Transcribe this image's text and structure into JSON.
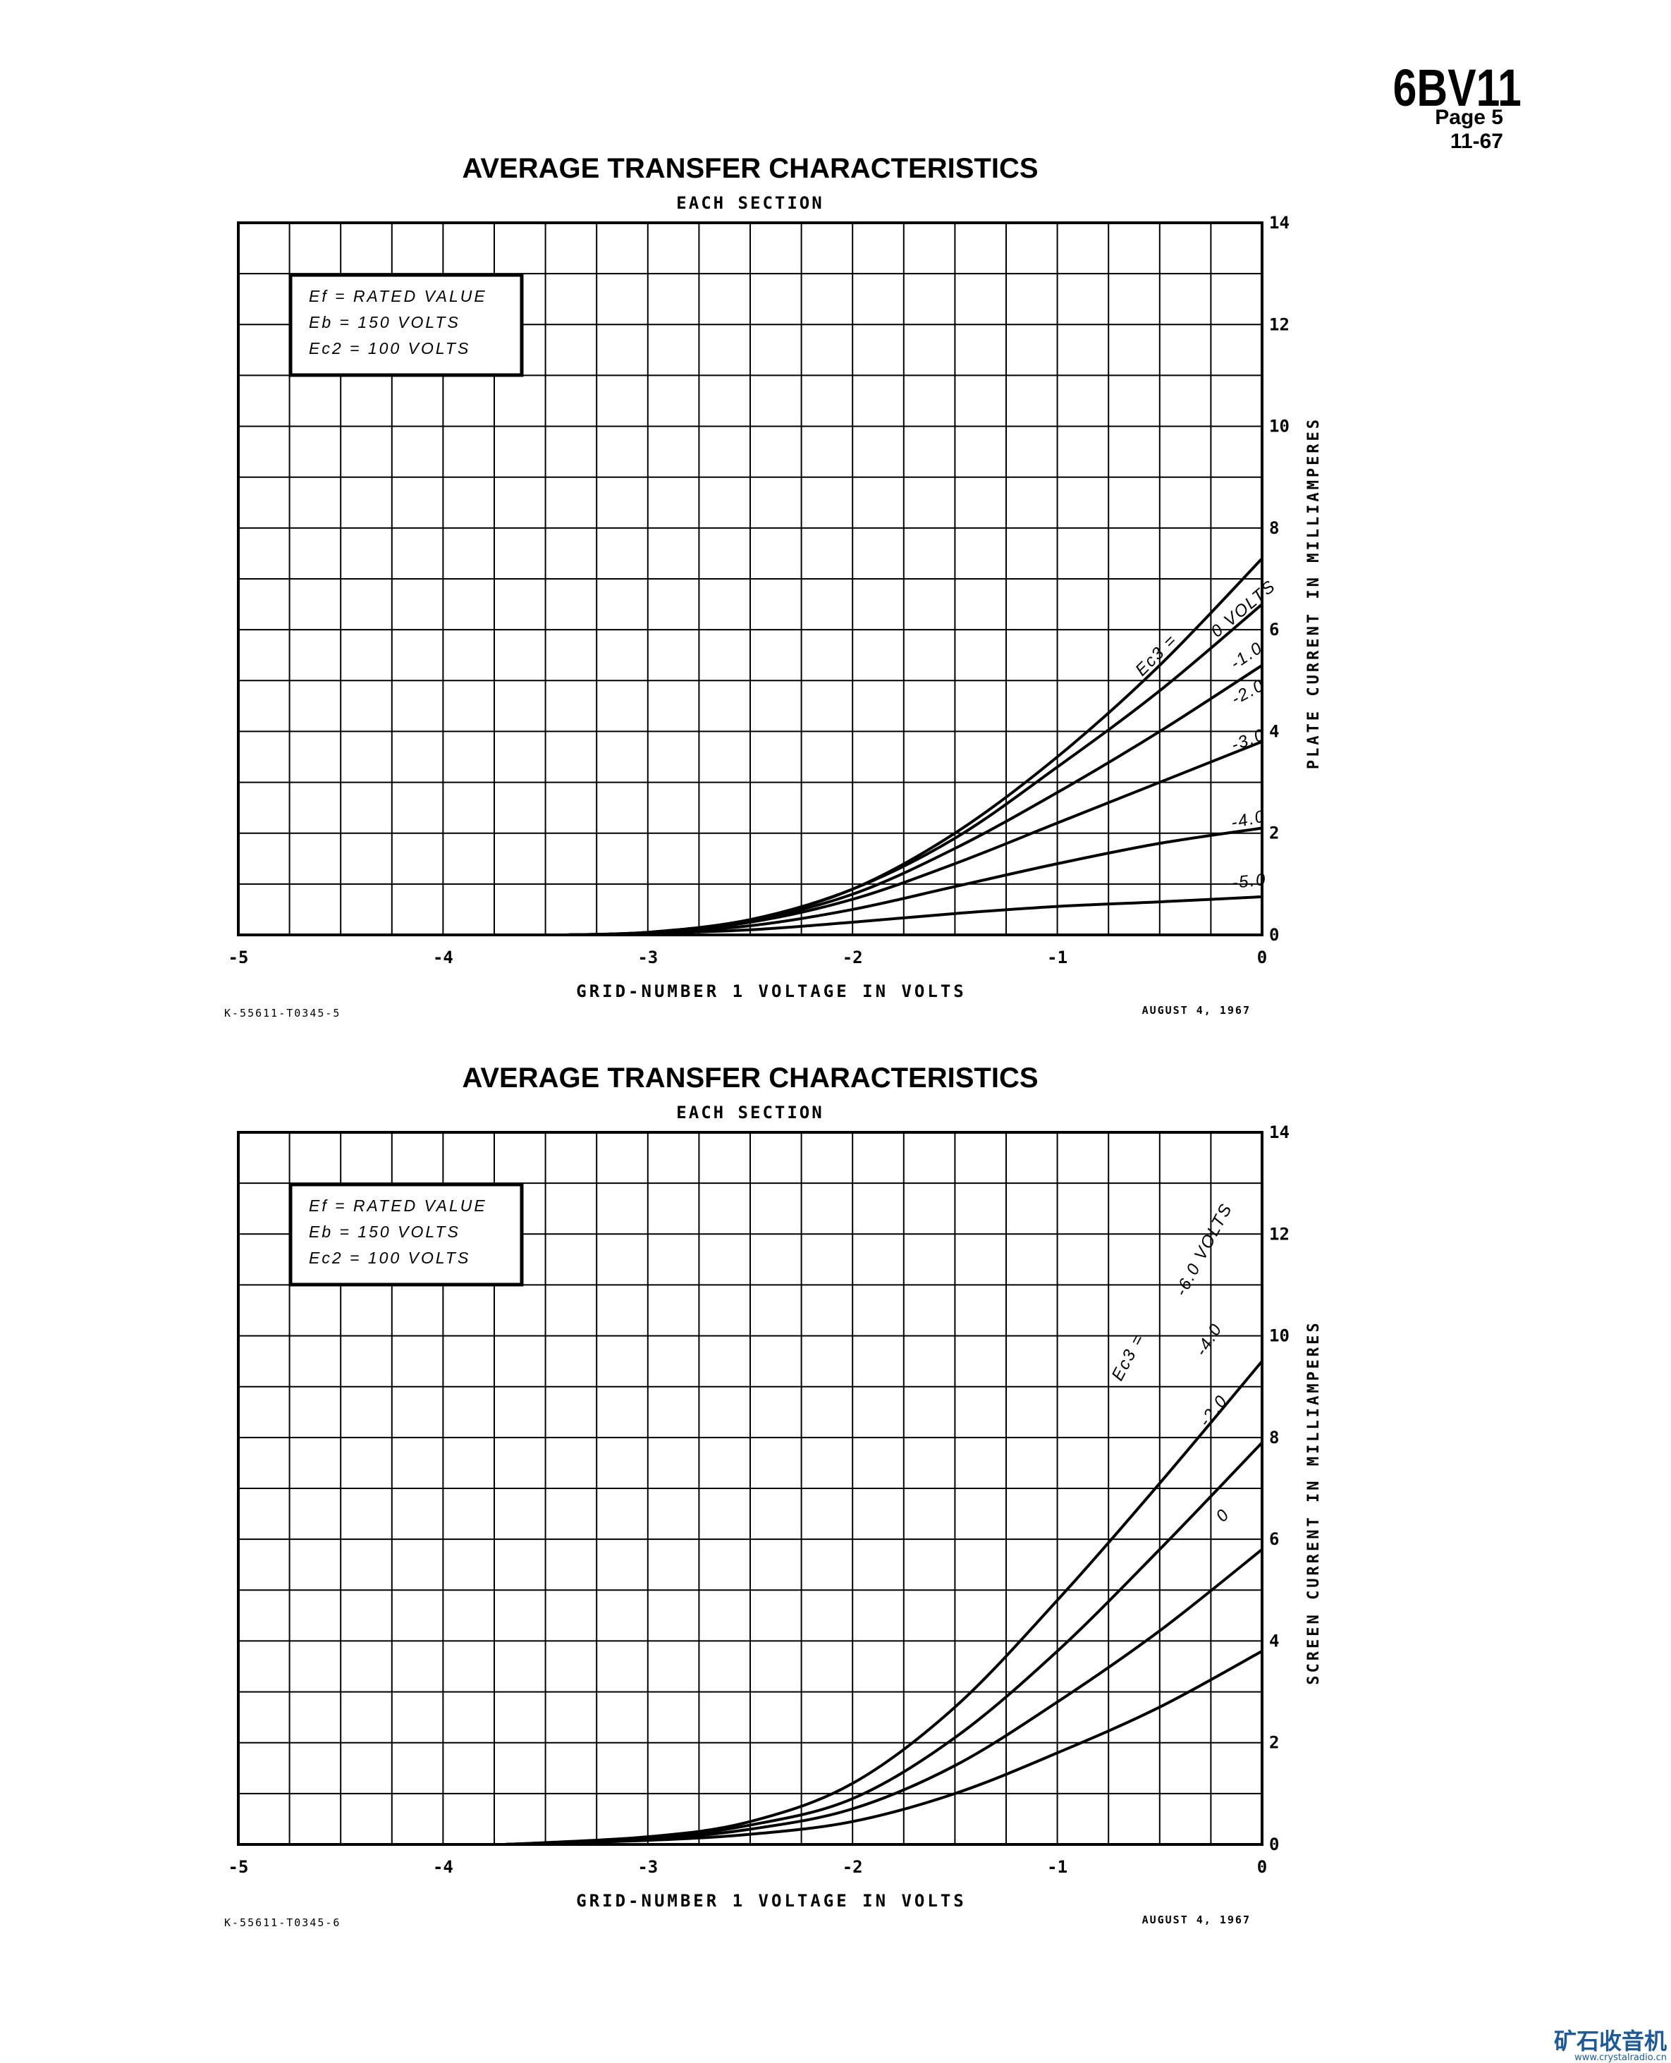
{
  "header": {
    "tube": "6BV11",
    "page": "Page 5",
    "date": "11-67"
  },
  "watermark": {
    "cn": "矿石收音机",
    "url": "www.crystalradio.cn"
  },
  "colors": {
    "ink": "#000000",
    "paper": "#ffffff",
    "watermark": "#1e5b96"
  },
  "chart_data": [
    {
      "type": "line",
      "title": "AVERAGE TRANSFER CHARACTERISTICS",
      "subtitle": "EACH SECTION",
      "xlabel": "GRID-NUMBER 1 VOLTAGE IN VOLTS",
      "ylabel": "PLATE CURRENT IN MILLIAMPERES",
      "xlim": [
        -5,
        0
      ],
      "ylim": [
        0,
        14
      ],
      "xticks": [
        -5,
        -4,
        -3,
        -2,
        -1,
        0
      ],
      "xtick_labels": [
        "-5",
        "-4",
        "-3",
        "-2",
        "-1",
        "0"
      ],
      "yticks": [
        0,
        2,
        4,
        6,
        8,
        10,
        12,
        14
      ],
      "ytick_labels": [
        "0",
        "2",
        "4",
        "6",
        "8",
        "10",
        "12",
        "14"
      ],
      "grid": true,
      "conditions": [
        "Ef = RATED VALUE",
        "Eb = 150 VOLTS",
        "Ec2 = 100 VOLTS"
      ],
      "series_label_prefix": "Ec3 =",
      "series": [
        {
          "name": "0 VOLTS",
          "points": [
            [
              -3.4,
              0
            ],
            [
              -3.0,
              0.05
            ],
            [
              -2.5,
              0.3
            ],
            [
              -2.0,
              0.9
            ],
            [
              -1.5,
              2.0
            ],
            [
              -1.0,
              3.5
            ],
            [
              -0.5,
              5.3
            ],
            [
              0.0,
              7.4
            ]
          ]
        },
        {
          "name": "-1.0",
          "points": [
            [
              -3.4,
              0
            ],
            [
              -3.0,
              0.05
            ],
            [
              -2.5,
              0.3
            ],
            [
              -2.0,
              0.9
            ],
            [
              -1.5,
              1.9
            ],
            [
              -1.0,
              3.3
            ],
            [
              -0.5,
              4.8
            ],
            [
              0.0,
              6.5
            ]
          ]
        },
        {
          "name": "-2.0",
          "points": [
            [
              -3.4,
              0
            ],
            [
              -3.0,
              0.05
            ],
            [
              -2.5,
              0.28
            ],
            [
              -2.0,
              0.8
            ],
            [
              -1.5,
              1.7
            ],
            [
              -1.0,
              2.8
            ],
            [
              -0.5,
              4.0
            ],
            [
              0.0,
              5.3
            ]
          ]
        },
        {
          "name": "-3.0",
          "points": [
            [
              -3.4,
              0
            ],
            [
              -3.0,
              0.05
            ],
            [
              -2.5,
              0.25
            ],
            [
              -2.0,
              0.7
            ],
            [
              -1.5,
              1.4
            ],
            [
              -1.0,
              2.2
            ],
            [
              -0.5,
              3.0
            ],
            [
              0.0,
              3.8
            ]
          ]
        },
        {
          "name": "-4.0",
          "points": [
            [
              -3.4,
              0
            ],
            [
              -3.0,
              0.04
            ],
            [
              -2.5,
              0.18
            ],
            [
              -2.0,
              0.5
            ],
            [
              -1.5,
              0.95
            ],
            [
              -1.0,
              1.4
            ],
            [
              -0.5,
              1.8
            ],
            [
              0.0,
              2.1
            ]
          ]
        },
        {
          "name": "-5.0",
          "points": [
            [
              -3.4,
              0
            ],
            [
              -3.0,
              0.03
            ],
            [
              -2.5,
              0.1
            ],
            [
              -2.0,
              0.25
            ],
            [
              -1.5,
              0.42
            ],
            [
              -1.0,
              0.56
            ],
            [
              -0.5,
              0.65
            ],
            [
              0.0,
              0.75
            ]
          ]
        }
      ],
      "footer_left": "K-55611-T0345-5",
      "footer_right": "AUGUST 4, 1967"
    },
    {
      "type": "line",
      "title": "AVERAGE TRANSFER CHARACTERISTICS",
      "subtitle": "EACH SECTION",
      "xlabel": "GRID-NUMBER 1 VOLTAGE IN VOLTS",
      "ylabel": "SCREEN CURRENT IN MILLIAMPERES",
      "xlim": [
        -5,
        0
      ],
      "ylim": [
        0,
        14
      ],
      "xticks": [
        -5,
        -4,
        -3,
        -2,
        -1,
        0
      ],
      "xtick_labels": [
        "-5",
        "-4",
        "-3",
        "-2",
        "-1",
        "0"
      ],
      "yticks": [
        0,
        2,
        4,
        6,
        8,
        10,
        12,
        14
      ],
      "ytick_labels": [
        "0",
        "2",
        "4",
        "6",
        "8",
        "10",
        "12",
        "14"
      ],
      "grid": true,
      "conditions": [
        "Ef = RATED VALUE",
        "Eb = 150 VOLTS",
        "Ec2 = 100 VOLTS"
      ],
      "series_label_prefix": "Ec3 =",
      "series": [
        {
          "name": "-6.0 VOLTS",
          "points": [
            [
              -3.7,
              0
            ],
            [
              -3.0,
              0.15
            ],
            [
              -2.5,
              0.45
            ],
            [
              -2.0,
              1.2
            ],
            [
              -1.5,
              2.7
            ],
            [
              -1.0,
              4.8
            ],
            [
              -0.5,
              7.1
            ],
            [
              0.0,
              9.5
            ]
          ]
        },
        {
          "name": "-4.0",
          "points": [
            [
              -3.7,
              0
            ],
            [
              -3.0,
              0.12
            ],
            [
              -2.5,
              0.38
            ],
            [
              -2.0,
              0.9
            ],
            [
              -1.5,
              2.1
            ],
            [
              -1.0,
              3.8
            ],
            [
              -0.5,
              5.8
            ],
            [
              0.0,
              7.9
            ]
          ]
        },
        {
          "name": "-2.0",
          "points": [
            [
              -3.7,
              0
            ],
            [
              -3.0,
              0.1
            ],
            [
              -2.5,
              0.3
            ],
            [
              -2.0,
              0.7
            ],
            [
              -1.5,
              1.55
            ],
            [
              -1.0,
              2.8
            ],
            [
              -0.5,
              4.2
            ],
            [
              0.0,
              5.8
            ]
          ]
        },
        {
          "name": "0",
          "points": [
            [
              -3.7,
              0
            ],
            [
              -3.0,
              0.08
            ],
            [
              -2.5,
              0.2
            ],
            [
              -2.0,
              0.45
            ],
            [
              -1.5,
              1.0
            ],
            [
              -1.0,
              1.8
            ],
            [
              -0.5,
              2.7
            ],
            [
              0.0,
              3.8
            ]
          ]
        }
      ],
      "footer_left": "K-55611-T0345-6",
      "footer_right": "AUGUST 4, 1967"
    }
  ]
}
